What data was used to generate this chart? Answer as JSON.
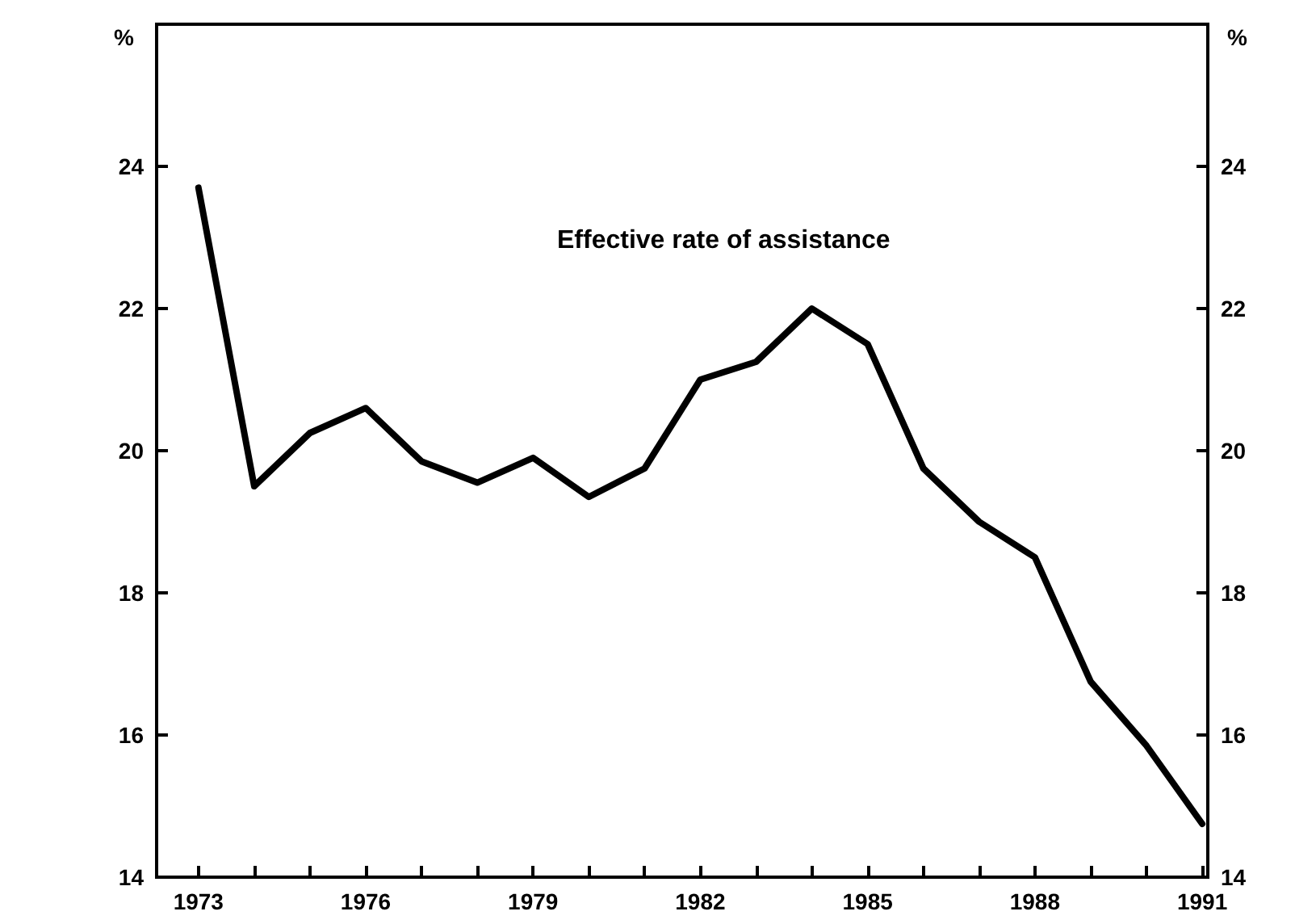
{
  "chart_data": {
    "type": "line",
    "ylabel": "%",
    "y2label": "%",
    "annotations": [
      "Effective rate of assistance"
    ],
    "x": [
      1973,
      1974,
      1975,
      1976,
      1977,
      1978,
      1979,
      1980,
      1981,
      1982,
      1983,
      1984,
      1985,
      1986,
      1987,
      1988,
      1989,
      1990,
      1991
    ],
    "series": [
      {
        "color": "#000000",
        "values": [
          23.7,
          19.5,
          20.25,
          20.6,
          19.85,
          19.55,
          19.9,
          19.35,
          19.75,
          21.0,
          21.25,
          22.0,
          21.5,
          19.75,
          19.0,
          18.5,
          16.75,
          15.85,
          14.75
        ]
      }
    ],
    "xlim": [
      1972.25,
      1991.1
    ],
    "xticks": [
      1973,
      {
        "value": 1974,
        "label": null
      },
      {
        "value": 1975,
        "label": null
      },
      1976,
      {
        "value": 1977,
        "label": null
      },
      {
        "value": 1978,
        "label": null
      },
      1979,
      {
        "value": 1980,
        "label": null
      },
      {
        "value": 1981,
        "label": null
      },
      1982,
      {
        "value": 1983,
        "label": null
      },
      {
        "value": 1984,
        "label": null
      },
      1985,
      {
        "value": 1986,
        "label": null
      },
      {
        "value": 1987,
        "label": null
      },
      1988,
      {
        "value": 1989,
        "label": null
      },
      {
        "value": 1990,
        "label": null
      },
      1991
    ],
    "ylim": [
      14,
      26
    ],
    "yticks": [
      14,
      16,
      18,
      20,
      22,
      24
    ],
    "y2lim": [
      14,
      26
    ],
    "y2ticks": [
      14,
      16,
      18,
      20,
      22,
      24
    ],
    "grid": false,
    "marker": "none",
    "line_style": "solid"
  }
}
